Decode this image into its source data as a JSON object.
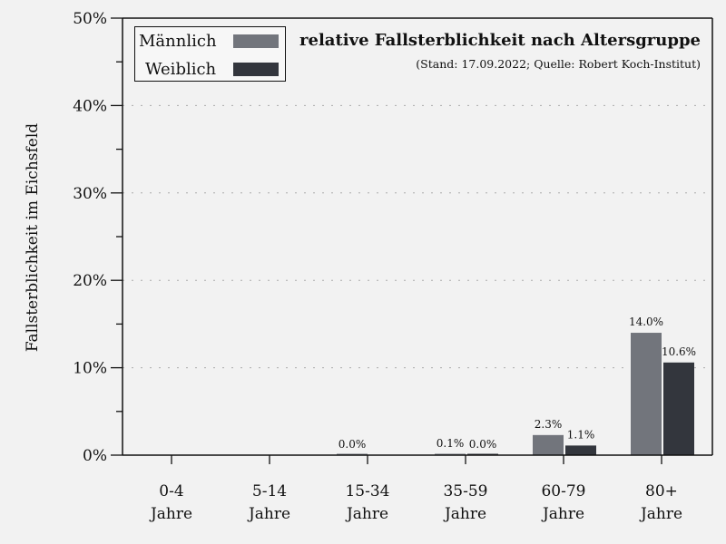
{
  "chart_data": {
    "type": "bar",
    "title": "relative Fallsterblichkeit nach Altersgruppe",
    "subtitle": "(Stand: 17.09.2022; Quelle: Robert Koch-Institut)",
    "xlabel": "",
    "ylabel": "Fallsterblichkeit im Eichsfeld",
    "ylim": [
      0,
      50
    ],
    "yticks": [
      "0%",
      "10%",
      "20%",
      "30%",
      "40%",
      "50%"
    ],
    "categories": [
      "0-4 Jahre",
      "5-14 Jahre",
      "15-34 Jahre",
      "35-59 Jahre",
      "60-79 Jahre",
      "80+ Jahre"
    ],
    "series": [
      {
        "name": "Männlich",
        "color": "#72757c",
        "values": [
          null,
          null,
          0.0,
          0.1,
          2.3,
          14.0
        ],
        "labels": [
          "",
          "",
          "0.0%",
          "0.1%",
          "2.3%",
          "14.0%"
        ]
      },
      {
        "name": "Weiblich",
        "color": "#33363d",
        "values": [
          null,
          null,
          null,
          0.0,
          1.1,
          10.6
        ],
        "labels": [
          "",
          "",
          "",
          "0.0%",
          "1.1%",
          "10.6%"
        ]
      }
    ],
    "grid": "horizontal dotted",
    "legend_position": "upper left"
  },
  "legend": {
    "male": "Männlich",
    "female": "Weiblich"
  },
  "header": {
    "title": "relative Fallsterblichkeit nach Altersgruppe",
    "subtitle": "(Stand: 17.09.2022; Quelle: Robert Koch-Institut)"
  },
  "axis": {
    "ylabel": "Fallsterblichkeit im Eichsfeld"
  }
}
